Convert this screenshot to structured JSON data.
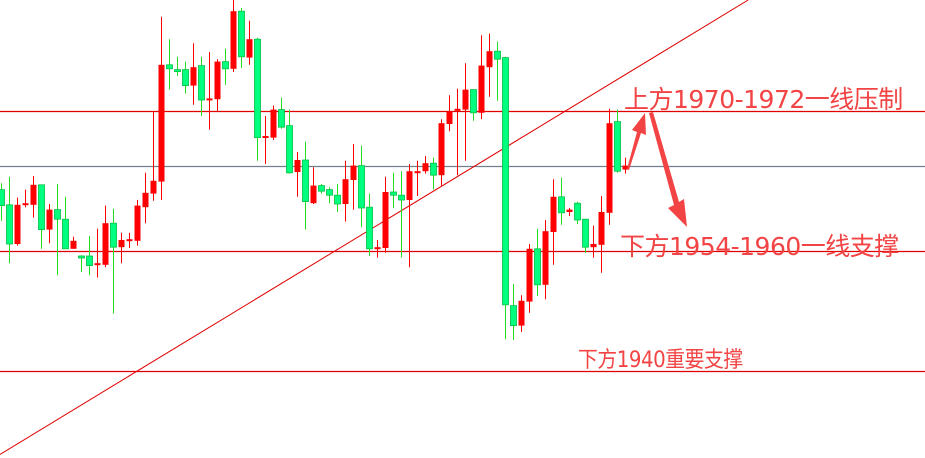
{
  "chart_data": {
    "type": "candlestick",
    "title": "",
    "xlabel": "",
    "ylabel": "",
    "ylim": [
      1928.75,
      1985.0
    ],
    "grid": false,
    "colors": {
      "up": "#ff0000",
      "down": "#00ff7f",
      "down_border": "#00c040",
      "down_wick": "#22dd22",
      "level_line": "#e00000",
      "mid_line": "#708090",
      "trendline": "#e00000",
      "annotation": "#f24444"
    },
    "candles": [
      [
        1961.3,
        1962.1,
        1957.4,
        1959.3
      ],
      [
        1959.4,
        1962.9,
        1952.1,
        1954.5
      ],
      [
        1954.5,
        1960.3,
        1954.3,
        1959.4
      ],
      [
        1959.5,
        1961.3,
        1959.1,
        1959.6
      ],
      [
        1959.4,
        1963.0,
        1957.8,
        1961.9
      ],
      [
        1961.9,
        1961.9,
        1953.9,
        1956.3
      ],
      [
        1956.3,
        1959.5,
        1954.6,
        1958.8
      ],
      [
        1958.8,
        1962.0,
        1950.6,
        1957.6
      ],
      [
        1957.6,
        1960.4,
        1953.9,
        1953.9
      ],
      [
        1953.9,
        1955.4,
        1953.9,
        1954.9
      ],
      [
        1953.0,
        1953.1,
        1951.0,
        1952.9
      ],
      [
        1953.0,
        1955.5,
        1950.6,
        1951.8
      ],
      [
        1952.0,
        1956.4,
        1950.3,
        1952.1
      ],
      [
        1951.9,
        1959.3,
        1951.6,
        1957.1
      ],
      [
        1957.1,
        1958.9,
        1945.8,
        1954.1
      ],
      [
        1954.1,
        1955.9,
        1952.1,
        1955.0
      ],
      [
        1955.0,
        1955.9,
        1954.0,
        1955.1
      ],
      [
        1954.9,
        1960.0,
        1954.3,
        1959.3
      ],
      [
        1959.1,
        1963.4,
        1957.1,
        1960.9
      ],
      [
        1960.8,
        1971.1,
        1959.9,
        1962.4
      ],
      [
        1962.3,
        1982.9,
        1960.0,
        1976.9
      ],
      [
        1976.9,
        1980.1,
        1973.8,
        1976.4
      ],
      [
        1976.3,
        1977.9,
        1975.5,
        1976.2
      ],
      [
        1976.3,
        1977.3,
        1973.3,
        1974.3
      ],
      [
        1974.3,
        1979.6,
        1971.9,
        1976.6
      ],
      [
        1976.8,
        1977.9,
        1970.5,
        1972.5
      ],
      [
        1972.6,
        1978.5,
        1968.8,
        1972.7
      ],
      [
        1972.6,
        1977.6,
        1971.1,
        1977.3
      ],
      [
        1977.3,
        1978.9,
        1974.4,
        1976.4
      ],
      [
        1976.4,
        1985.0,
        1976.0,
        1983.6
      ],
      [
        1983.6,
        1984.0,
        1976.5,
        1977.9
      ],
      [
        1977.8,
        1982.4,
        1976.9,
        1980.1
      ],
      [
        1980.1,
        1980.3,
        1964.9,
        1967.8
      ],
      [
        1967.9,
        1970.5,
        1964.5,
        1968.0
      ],
      [
        1967.8,
        1971.8,
        1967.5,
        1971.3
      ],
      [
        1971.3,
        1972.8,
        1968.9,
        1969.1
      ],
      [
        1969.3,
        1971.3,
        1963.3,
        1963.4
      ],
      [
        1963.5,
        1966.0,
        1960.4,
        1965.0
      ],
      [
        1965.0,
        1967.3,
        1956.3,
        1959.8
      ],
      [
        1959.6,
        1964.1,
        1959.5,
        1961.8
      ],
      [
        1961.8,
        1962.0,
        1960.8,
        1961.1
      ],
      [
        1961.3,
        1961.6,
        1959.6,
        1960.6
      ],
      [
        1960.6,
        1962.0,
        1958.5,
        1959.5
      ],
      [
        1959.5,
        1964.9,
        1957.3,
        1962.6
      ],
      [
        1962.5,
        1967.0,
        1958.8,
        1964.3
      ],
      [
        1964.3,
        1966.8,
        1956.6,
        1959.0
      ],
      [
        1959.1,
        1960.8,
        1953.0,
        1953.9
      ],
      [
        1954.0,
        1955.0,
        1952.8,
        1954.1
      ],
      [
        1954.0,
        1962.9,
        1953.4,
        1961.0
      ],
      [
        1961.0,
        1963.4,
        1959.0,
        1960.6
      ],
      [
        1960.6,
        1963.6,
        1952.8,
        1960.0
      ],
      [
        1960.0,
        1964.5,
        1951.6,
        1963.6
      ],
      [
        1963.5,
        1964.9,
        1960.5,
        1963.6
      ],
      [
        1963.6,
        1965.5,
        1963.3,
        1964.6
      ],
      [
        1964.6,
        1965.3,
        1961.3,
        1963.1
      ],
      [
        1963.1,
        1970.1,
        1961.8,
        1969.6
      ],
      [
        1969.5,
        1973.1,
        1968.6,
        1971.1
      ],
      [
        1971.3,
        1973.9,
        1963.1,
        1971.4
      ],
      [
        1971.3,
        1977.1,
        1964.9,
        1973.8
      ],
      [
        1973.8,
        1973.8,
        1969.9,
        1970.9
      ],
      [
        1970.9,
        1980.6,
        1970.1,
        1976.8
      ],
      [
        1976.6,
        1980.8,
        1972.9,
        1978.6
      ],
      [
        1978.6,
        1979.8,
        1972.4,
        1977.6
      ],
      [
        1977.8,
        1977.9,
        1942.6,
        1946.9
      ],
      [
        1946.8,
        1949.5,
        1942.5,
        1944.3
      ],
      [
        1944.3,
        1948.1,
        1943.5,
        1947.4
      ],
      [
        1947.3,
        1954.5,
        1945.9,
        1953.9
      ],
      [
        1953.9,
        1956.4,
        1948.0,
        1949.4
      ],
      [
        1949.4,
        1957.5,
        1947.6,
        1956.1
      ],
      [
        1956.0,
        1962.6,
        1951.9,
        1960.4
      ],
      [
        1960.4,
        1962.8,
        1956.9,
        1958.4
      ],
      [
        1958.5,
        1959.0,
        1958.0,
        1958.8
      ],
      [
        1959.6,
        1959.8,
        1957.0,
        1957.5
      ],
      [
        1957.6,
        1957.6,
        1953.4,
        1954.1
      ],
      [
        1954.1,
        1956.8,
        1952.8,
        1954.5
      ],
      [
        1954.4,
        1960.5,
        1950.9,
        1958.5
      ],
      [
        1958.4,
        1971.4,
        1956.9,
        1969.6
      ],
      [
        1969.8,
        1971.3,
        1963.4,
        1963.6
      ],
      [
        1963.8,
        1965.3,
        1963.3,
        1964.3
      ]
    ],
    "levels": [
      {
        "price": 1971.1,
        "style": "red"
      },
      {
        "price": 1964.25,
        "style": "grey"
      },
      {
        "price": 1953.6,
        "style": "red"
      },
      {
        "price": 1938.6,
        "style": "red"
      }
    ],
    "trendline": {
      "from": [
        0,
        1928.2
      ],
      "to": [
        93.4,
        1985.0
      ]
    },
    "annotations": [
      {
        "text": "上方1970-1972一线压制"
      },
      {
        "text": "下方1954-1960一线支撑"
      },
      {
        "text": "下方1940重要支撑"
      }
    ]
  }
}
